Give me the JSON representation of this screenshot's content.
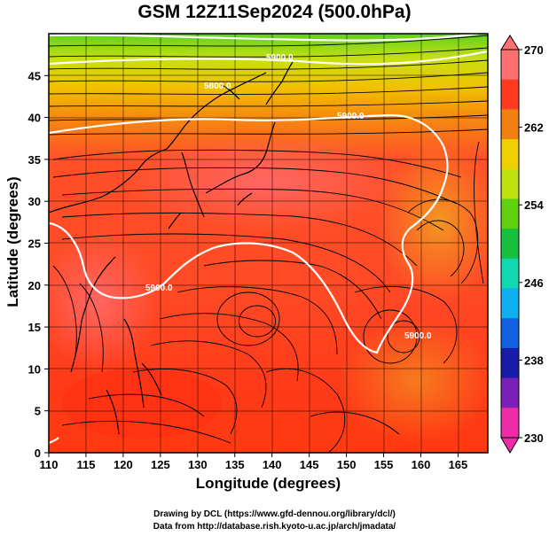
{
  "title": "GSM 12Z11Sep2024 (500.0hPa)",
  "x_axis": {
    "label": "Longitude (degrees)",
    "min": 110,
    "max": 169,
    "ticks": [
      "110",
      "115",
      "120",
      "125",
      "130",
      "135",
      "140",
      "145",
      "150",
      "155",
      "160",
      "165"
    ]
  },
  "y_axis": {
    "label": "Latitude  (degrees)",
    "min": 0,
    "max": 50,
    "ticks": [
      "0",
      "5",
      "10",
      "15",
      "20",
      "25",
      "30",
      "35",
      "40",
      "45"
    ]
  },
  "colorbar": {
    "ticks": [
      "230",
      "238",
      "246",
      "254",
      "262",
      "270"
    ],
    "min": 230,
    "max": 270,
    "colors": [
      "#ee2ca8",
      "#7a1fb8",
      "#1a1aa8",
      "#1060e0",
      "#10b0f0",
      "#10d8b0",
      "#18c040",
      "#60d010",
      "#c0e010",
      "#f0d000",
      "#f08010",
      "#ff3a20",
      "#ff7070"
    ]
  },
  "contour_labels": [
    "5900.0",
    "5800.0",
    "5900.0",
    "5900.0",
    "5900.0"
  ],
  "credits": {
    "line1": "Drawing by DCL (https://www.gfd-dennou.org/library/dcl/)",
    "line2": "Data from http://database.rish.kyoto-u.ac.jp/arch/jmadata/"
  }
}
